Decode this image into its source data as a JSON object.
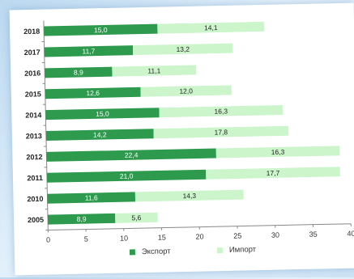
{
  "chart_data": {
    "type": "bar",
    "orientation": "horizontal",
    "stacked": true,
    "categories": [
      "2018",
      "2017",
      "2016",
      "2015",
      "2014",
      "2013",
      "2012",
      "2011",
      "2010",
      "2005"
    ],
    "series": [
      {
        "name": "Экспорт",
        "color": "#2e9a4e",
        "values": [
          15.0,
          11.7,
          8.9,
          12.6,
          15.0,
          14.2,
          22.4,
          21.0,
          11.6,
          8.9
        ],
        "labels": [
          "15,0",
          "11,7",
          "8,9",
          "12,6",
          "15,0",
          "14,2",
          "22,4",
          "21,0",
          "11,6",
          "8,9"
        ]
      },
      {
        "name": "Импорт",
        "color": "#ccf5cc",
        "values": [
          14.1,
          13.2,
          11.1,
          12.0,
          16.3,
          17.8,
          16.3,
          17.7,
          14.3,
          5.6
        ],
        "labels": [
          "14,1",
          "13,2",
          "11,1",
          "12,0",
          "16,3",
          "17,8",
          "16,3",
          "17,7",
          "14,3",
          "5,6"
        ]
      }
    ],
    "xlim": [
      0,
      40
    ],
    "xticks": [
      0,
      5,
      10,
      15,
      20,
      25,
      30,
      35,
      40
    ],
    "title": "",
    "xlabel": "",
    "ylabel": "",
    "legend_position": "bottom",
    "grid": false
  }
}
